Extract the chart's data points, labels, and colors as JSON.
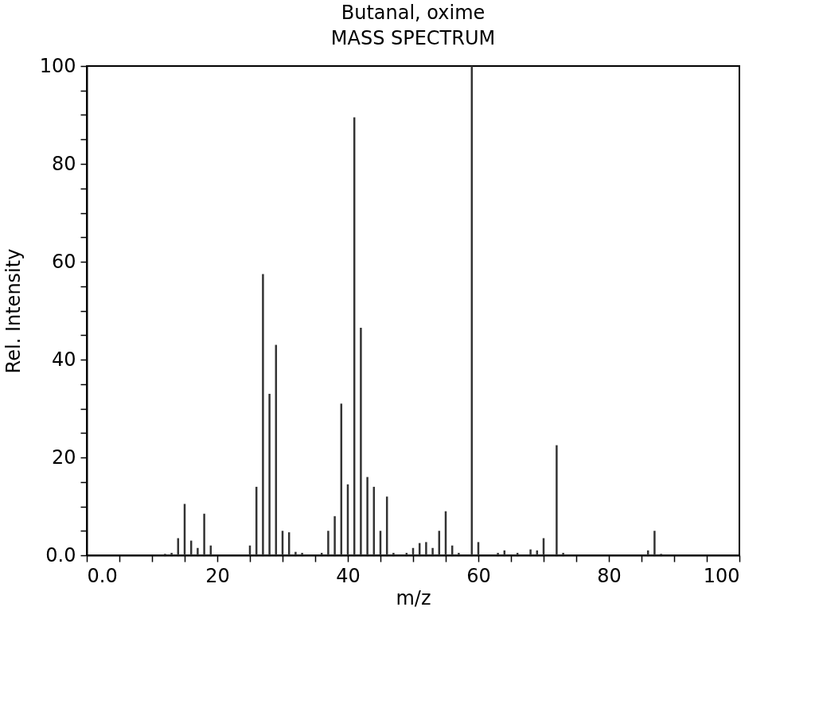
{
  "chart_data": {
    "type": "bar",
    "title": "Butanal, oxime",
    "subtitle": "MASS SPECTRUM",
    "xlabel": "m/z",
    "ylabel": "Rel. Intensity",
    "x": [
      12,
      13,
      14,
      15,
      16,
      17,
      18,
      19,
      25,
      26,
      27,
      28,
      29,
      30,
      31,
      32,
      33,
      36,
      37,
      38,
      39,
      40,
      41,
      42,
      43,
      44,
      45,
      46,
      47,
      49,
      50,
      51,
      52,
      53,
      54,
      55,
      56,
      57,
      59,
      60,
      63,
      64,
      66,
      68,
      69,
      70,
      72,
      73,
      86,
      87,
      88
    ],
    "values": [
      0.3,
      0.5,
      3.5,
      10.5,
      3,
      1.5,
      8.5,
      2,
      2,
      14,
      57.5,
      33,
      43,
      5,
      4.7,
      0.7,
      0.5,
      0.5,
      5,
      8,
      31,
      14.5,
      89.5,
      46.5,
      16,
      14,
      5,
      12,
      0.5,
      0.5,
      1.5,
      2.5,
      2.7,
      1.5,
      5,
      9,
      2,
      0.5,
      100,
      2.7,
      0.5,
      1,
      0.5,
      1.2,
      1,
      3.5,
      22.5,
      0.5,
      1,
      5,
      0.3
    ],
    "color": "#333333",
    "xlim": [
      0,
      100
    ],
    "xticks": [
      {
        "value": 0,
        "label": "0.0"
      },
      {
        "value": 5,
        "label": null
      },
      {
        "value": 10,
        "label": null
      },
      {
        "value": 15,
        "label": null
      },
      20,
      {
        "value": 25,
        "label": null
      },
      {
        "value": 30,
        "label": null
      },
      {
        "value": 35,
        "label": null
      },
      40,
      {
        "value": 45,
        "label": null
      },
      {
        "value": 50,
        "label": null
      },
      {
        "value": 55,
        "label": null
      },
      60,
      {
        "value": 65,
        "label": null
      },
      {
        "value": 70,
        "label": null
      },
      {
        "value": 75,
        "label": null
      },
      80,
      {
        "value": 85,
        "label": null
      },
      {
        "value": 90,
        "label": null
      },
      {
        "value": 95,
        "label": null
      },
      100
    ],
    "ylim": [
      0,
      100
    ],
    "yticks": [
      {
        "value": 0,
        "label": "0.0"
      },
      {
        "value": 5,
        "label": null
      },
      {
        "value": 10,
        "label": null
      },
      {
        "value": 15,
        "label": null
      },
      20,
      {
        "value": 25,
        "label": null
      },
      {
        "value": 30,
        "label": null
      },
      {
        "value": 35,
        "label": null
      },
      40,
      {
        "value": 45,
        "label": null
      },
      {
        "value": 50,
        "label": null
      },
      {
        "value": 55,
        "label": null
      },
      60,
      {
        "value": 65,
        "label": null
      },
      {
        "value": 70,
        "label": null
      },
      {
        "value": 75,
        "label": null
      },
      80,
      {
        "value": 85,
        "label": null
      },
      {
        "value": 90,
        "label": null
      },
      {
        "value": 95,
        "label": null
      },
      100
    ],
    "grid": false
  }
}
